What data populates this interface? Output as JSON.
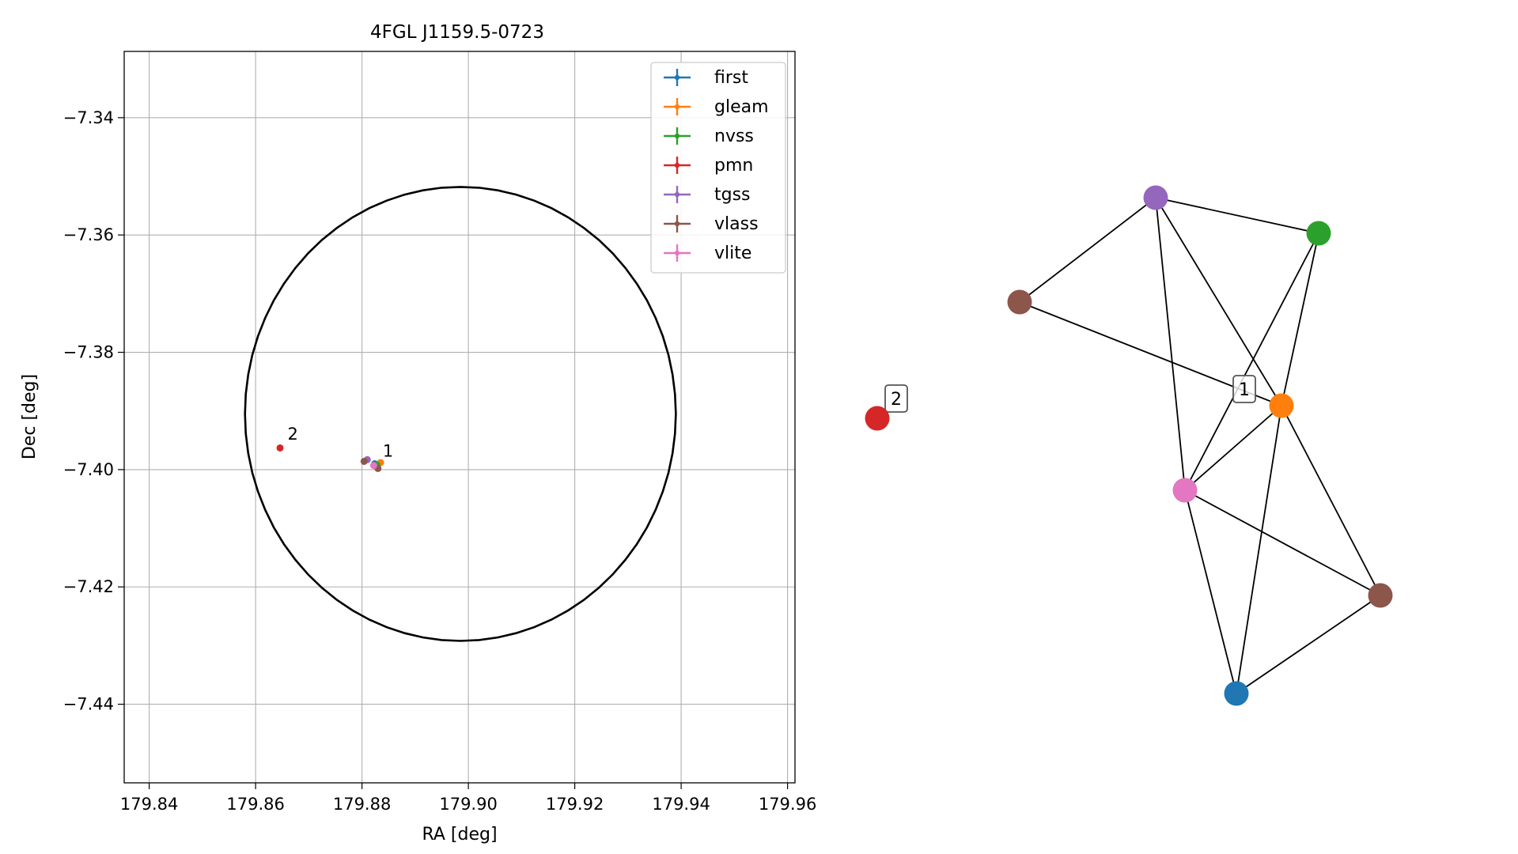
{
  "chart_data": [
    {
      "type": "scatter",
      "title": "4FGL J1159.5-0723",
      "xlabel": "RA [deg]",
      "ylabel": "Dec [deg]",
      "xlim": [
        179.8353,
        179.9614
      ],
      "ylim": [
        -7.4534,
        -7.3287
      ],
      "xticks": [
        179.84,
        179.86,
        179.88,
        179.9,
        179.92,
        179.94,
        179.96
      ],
      "xtick_labels": [
        "179.84",
        "179.86",
        "179.88",
        "179.90",
        "179.92",
        "179.94",
        "179.96"
      ],
      "yticks": [
        -7.34,
        -7.36,
        -7.38,
        -7.4,
        -7.42,
        -7.44
      ],
      "ytick_labels": [
        "−7.34",
        "−7.36",
        "−7.38",
        "−7.40",
        "−7.42",
        "−7.44"
      ],
      "grid": true,
      "legend_position": "top-right",
      "series": [
        {
          "name": "first",
          "color": "#1f77b4",
          "points": [
            {
              "x": 179.8824,
              "y": -7.399
            }
          ]
        },
        {
          "name": "gleam",
          "color": "#ff7f0e",
          "points": [
            {
              "x": 179.8835,
              "y": -7.3988
            }
          ]
        },
        {
          "name": "nvss",
          "color": "#2ca02c",
          "points": [
            {
              "x": 179.8828,
              "y": -7.3992
            }
          ]
        },
        {
          "name": "pmn",
          "color": "#d62728",
          "points": [
            {
              "x": 179.8646,
              "y": -7.3963
            }
          ]
        },
        {
          "name": "tgss",
          "color": "#9467bd",
          "points": [
            {
              "x": 179.881,
              "y": -7.3983
            }
          ]
        },
        {
          "name": "vlass",
          "color": "#8c564b",
          "points": [
            {
              "x": 179.8804,
              "y": -7.3986
            },
            {
              "x": 179.883,
              "y": -7.3998
            }
          ]
        },
        {
          "name": "vlite",
          "color": "#e377c2",
          "points": [
            {
              "x": 179.8822,
              "y": -7.3993
            }
          ]
        }
      ],
      "ellipse": {
        "center": [
          179.8985,
          -7.3905
        ],
        "semi_axis_ra": 0.0405,
        "semi_axis_dec": 0.0387,
        "color": "#000000"
      },
      "annotations": [
        {
          "text": "1",
          "x": 179.8839,
          "y": -7.3978
        },
        {
          "text": "2",
          "x": 179.866,
          "y": -7.3949
        }
      ]
    },
    {
      "type": "network",
      "nodes": [
        {
          "id": "vlass-a",
          "color": "#8c564b"
        },
        {
          "id": "tgss",
          "color": "#9467bd"
        },
        {
          "id": "nvss",
          "color": "#2ca02c"
        },
        {
          "id": "gleam",
          "color": "#ff7f0e"
        },
        {
          "id": "vlite",
          "color": "#e377c2"
        },
        {
          "id": "vlass-b",
          "color": "#8c564b"
        },
        {
          "id": "first",
          "color": "#1f77b4"
        },
        {
          "id": "pmn",
          "color": "#d62728"
        }
      ],
      "edges": [
        [
          "vlass-a",
          "tgss"
        ],
        [
          "vlass-a",
          "gleam"
        ],
        [
          "tgss",
          "nvss"
        ],
        [
          "tgss",
          "gleam"
        ],
        [
          "tgss",
          "vlite"
        ],
        [
          "nvss",
          "gleam"
        ],
        [
          "nvss",
          "vlite"
        ],
        [
          "gleam",
          "vlite"
        ],
        [
          "gleam",
          "vlass-b"
        ],
        [
          "gleam",
          "first"
        ],
        [
          "vlite",
          "vlass-b"
        ],
        [
          "vlite",
          "first"
        ],
        [
          "vlass-b",
          "first"
        ]
      ],
      "cluster_labels": [
        {
          "text": "1",
          "node": "gleam"
        },
        {
          "text": "2",
          "node": "pmn"
        }
      ]
    }
  ]
}
